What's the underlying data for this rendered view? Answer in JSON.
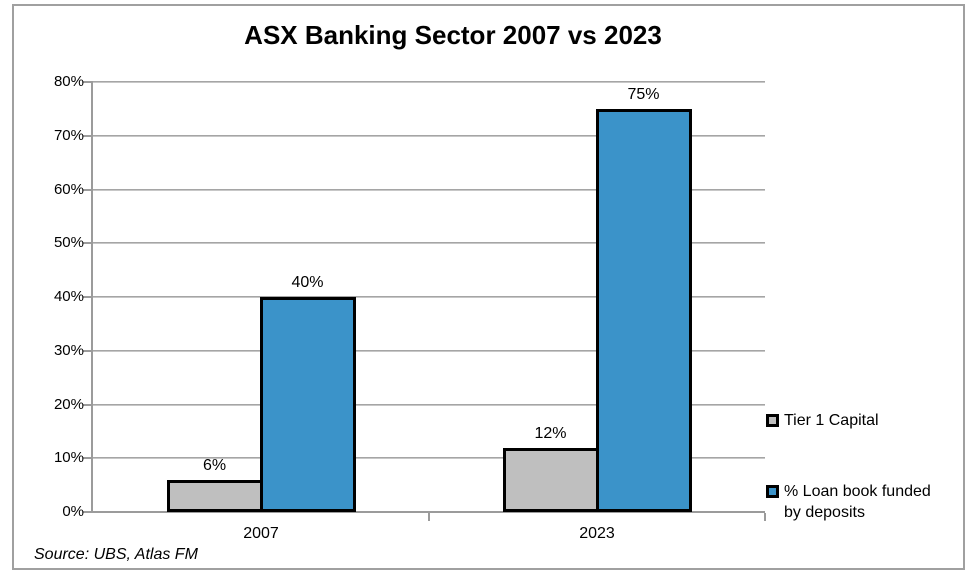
{
  "chart_data": {
    "type": "bar",
    "title": "ASX Banking Sector 2007 vs 2023",
    "categories": [
      "2007",
      "2023"
    ],
    "series": [
      {
        "name": "Tier 1 Capital",
        "color": "#BFBFBF",
        "values": [
          6,
          12
        ]
      },
      {
        "name": "% Loan book funded by deposits",
        "color": "#3B93C9",
        "values": [
          40,
          75
        ]
      }
    ],
    "ylim": [
      0,
      80
    ],
    "ytick_step": 10,
    "ytick_suffix": "%",
    "data_label_suffix": "%",
    "grid": true,
    "legend_position": "right",
    "bar_border_color": "#000000",
    "grid_color": "#bdbdbd",
    "axis_color": "#9b9b9b"
  },
  "source_note": "Source: UBS, Atlas FM"
}
